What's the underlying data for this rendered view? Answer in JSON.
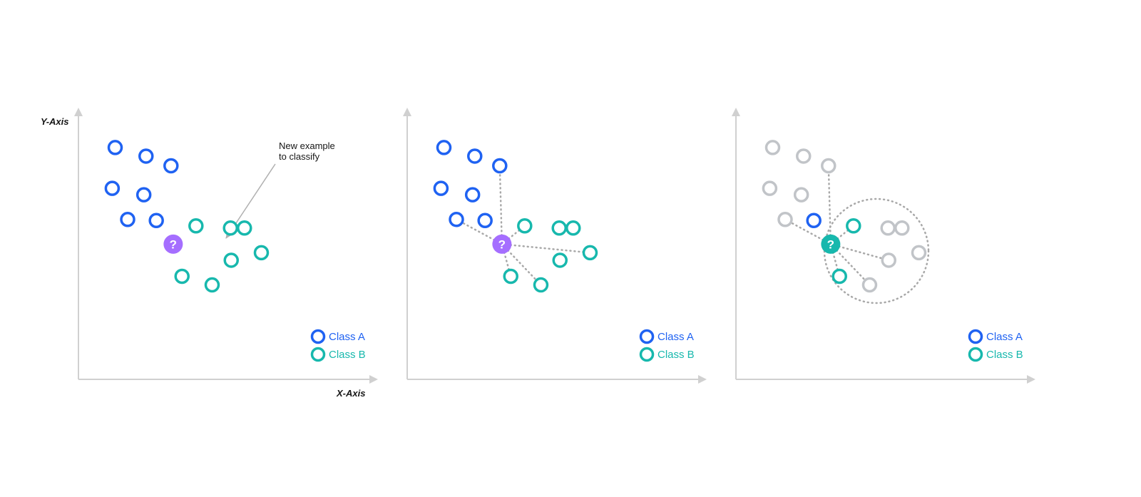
{
  "labels": {
    "y_axis": "Y-Axis",
    "x_axis": "X-Axis",
    "annotation_line1": "New example",
    "annotation_line2": "to classify",
    "query_symbol": "?"
  },
  "legend": {
    "class_a": "Class A",
    "class_b": "Class B"
  },
  "colors": {
    "class_a": "#1f62f2",
    "class_b": "#17b8ad",
    "query": "#a56eff",
    "query_classified": "#17b8ad",
    "faded": "#c1c4c8",
    "axis": "#d0d0d0",
    "neighbor_line": "#a8a8a8",
    "text": "#161616"
  },
  "points": [
    {
      "cls": "A",
      "x": 2.5,
      "y": 10.8
    },
    {
      "cls": "A",
      "x": 4.6,
      "y": 10.4
    },
    {
      "cls": "A",
      "x": 6.3,
      "y": 9.95
    },
    {
      "cls": "A",
      "x": 2.3,
      "y": 8.9
    },
    {
      "cls": "A",
      "x": 4.45,
      "y": 8.6
    },
    {
      "cls": "A",
      "x": 3.35,
      "y": 7.45
    },
    {
      "cls": "A",
      "x": 5.3,
      "y": 7.4
    },
    {
      "cls": "B",
      "x": 8.0,
      "y": 7.15
    },
    {
      "cls": "B",
      "x": 10.35,
      "y": 7.05
    },
    {
      "cls": "B",
      "x": 11.3,
      "y": 7.05
    },
    {
      "cls": "B",
      "x": 12.45,
      "y": 5.9
    },
    {
      "cls": "B",
      "x": 10.4,
      "y": 5.55
    },
    {
      "cls": "B",
      "x": 7.05,
      "y": 4.8
    },
    {
      "cls": "B",
      "x": 9.1,
      "y": 4.4
    }
  ],
  "query_point": {
    "x": 6.45,
    "y": 6.3
  },
  "panel2_neighbors": [
    2,
    5,
    7,
    10,
    12,
    13
  ],
  "panel3_highlighted": [
    6,
    7,
    12
  ],
  "panel3_lines": [
    2,
    5,
    7,
    11,
    12,
    13
  ]
}
